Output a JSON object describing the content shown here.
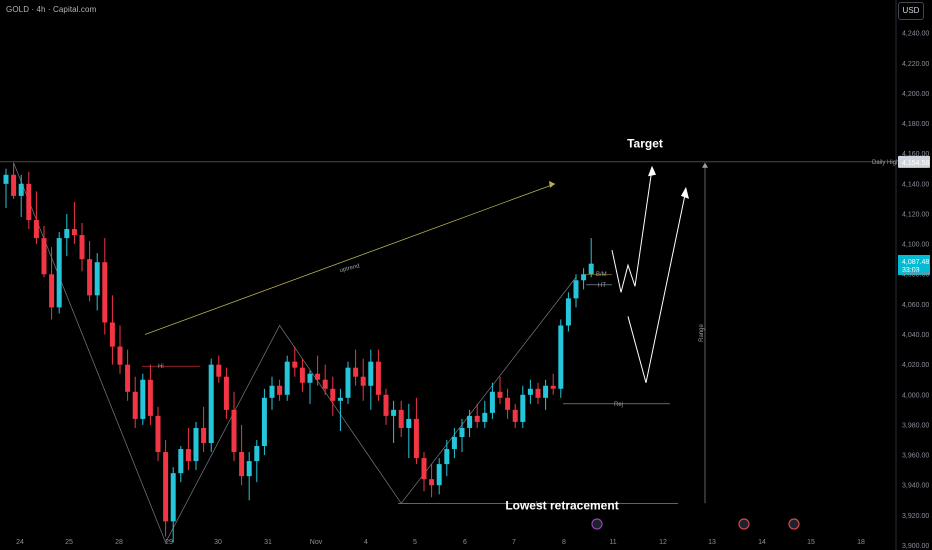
{
  "header": {
    "symbol": "GOLD · 4h · Capital.com",
    "currency": "USD"
  },
  "colors": {
    "up": "#26c6da",
    "down": "#f23645",
    "line": "#787b86",
    "trend": "#b5ad5a",
    "price_badge": "#00bcd4"
  },
  "chart_data": {
    "type": "candlestick",
    "y_ticks": [
      3900,
      3920,
      3940,
      3960,
      3980,
      4000,
      4020,
      4040,
      4060,
      4080,
      4100,
      4120,
      4140,
      4160,
      4180,
      4200,
      4220,
      4240
    ],
    "y_tick_labels": [
      "3,900.00",
      "3,920.00",
      "3,940.00",
      "3,960.00",
      "3,980.00",
      "4,000.00",
      "4,020.00",
      "4,040.00",
      "4,060.00",
      "4,080.00",
      "4,100.00",
      "4,120.00",
      "4,140.00",
      "4,160.00",
      "4,180.00",
      "4,200.00",
      "4,220.00",
      "4,240.00"
    ],
    "x_ticks": [
      "24",
      "25",
      "28",
      "29",
      "30",
      "31",
      "Nov",
      "4",
      "5",
      "6",
      "7",
      "8",
      "11",
      "12",
      "13",
      "14",
      "15",
      "18"
    ],
    "ylim": [
      3897,
      4262
    ],
    "candles": [
      [
        4140,
        4150,
        4124,
        4146
      ],
      [
        4146,
        4154,
        4130,
        4132
      ],
      [
        4132,
        4146,
        4118,
        4140
      ],
      [
        4140,
        4148,
        4110,
        4116
      ],
      [
        4116,
        4135,
        4100,
        4104
      ],
      [
        4104,
        4112,
        4078,
        4080
      ],
      [
        4080,
        4098,
        4050,
        4058
      ],
      [
        4058,
        4108,
        4054,
        4104
      ],
      [
        4104,
        4120,
        4092,
        4110
      ],
      [
        4110,
        4128,
        4100,
        4106
      ],
      [
        4106,
        4114,
        4082,
        4090
      ],
      [
        4090,
        4102,
        4062,
        4066
      ],
      [
        4066,
        4094,
        4056,
        4088
      ],
      [
        4088,
        4104,
        4040,
        4048
      ],
      [
        4048,
        4066,
        4020,
        4032
      ],
      [
        4032,
        4046,
        4014,
        4020
      ],
      [
        4020,
        4030,
        3996,
        4002
      ],
      [
        4002,
        4012,
        3978,
        3984
      ],
      [
        3984,
        4014,
        3980,
        4010
      ],
      [
        4010,
        4020,
        3980,
        3986
      ],
      [
        3986,
        3992,
        3956,
        3962
      ],
      [
        3962,
        3970,
        3906,
        3916
      ],
      [
        3916,
        3952,
        3902,
        3948
      ],
      [
        3948,
        3966,
        3942,
        3964
      ],
      [
        3964,
        3978,
        3950,
        3956
      ],
      [
        3956,
        3982,
        3950,
        3978
      ],
      [
        3978,
        3992,
        3962,
        3968
      ],
      [
        3968,
        4024,
        3962,
        4020
      ],
      [
        4020,
        4026,
        4008,
        4012
      ],
      [
        4012,
        4018,
        3984,
        3990
      ],
      [
        3990,
        4002,
        3956,
        3962
      ],
      [
        3962,
        3980,
        3940,
        3946
      ],
      [
        3946,
        3962,
        3930,
        3956
      ],
      [
        3956,
        3970,
        3942,
        3966
      ],
      [
        3966,
        4004,
        3960,
        3998
      ],
      [
        3998,
        4012,
        3990,
        4006
      ],
      [
        4006,
        4010,
        3996,
        4000
      ],
      [
        4000,
        4026,
        3996,
        4022
      ],
      [
        4022,
        4032,
        4012,
        4018
      ],
      [
        4018,
        4024,
        4002,
        4008
      ],
      [
        4008,
        4016,
        3994,
        4014
      ],
      [
        4014,
        4026,
        4006,
        4010
      ],
      [
        4010,
        4020,
        4000,
        4004
      ],
      [
        4004,
        4012,
        3986,
        3996
      ],
      [
        3996,
        4004,
        3976,
        3998
      ],
      [
        3998,
        4022,
        3994,
        4018
      ],
      [
        4018,
        4030,
        4006,
        4012
      ],
      [
        4012,
        4024,
        3996,
        4006
      ],
      [
        4006,
        4030,
        3990,
        4022
      ],
      [
        4022,
        4030,
        3996,
        4000
      ],
      [
        4000,
        4004,
        3980,
        3986
      ],
      [
        3986,
        3996,
        3968,
        3990
      ],
      [
        3990,
        3996,
        3972,
        3978
      ],
      [
        3978,
        3994,
        3958,
        3984
      ],
      [
        3984,
        3998,
        3954,
        3958
      ],
      [
        3958,
        3962,
        3936,
        3944
      ],
      [
        3944,
        3954,
        3932,
        3940
      ],
      [
        3940,
        3958,
        3934,
        3954
      ],
      [
        3954,
        3970,
        3946,
        3964
      ],
      [
        3964,
        3978,
        3958,
        3972
      ],
      [
        3972,
        3984,
        3962,
        3978
      ],
      [
        3978,
        3990,
        3972,
        3986
      ],
      [
        3986,
        3994,
        3978,
        3982
      ],
      [
        3982,
        3996,
        3978,
        3988
      ],
      [
        3988,
        4008,
        3984,
        4002
      ],
      [
        4002,
        4012,
        3994,
        3998
      ],
      [
        3998,
        4004,
        3984,
        3990
      ],
      [
        3990,
        3994,
        3978,
        3982
      ],
      [
        3982,
        4006,
        3978,
        4000
      ],
      [
        4000,
        4010,
        3994,
        4004
      ],
      [
        4004,
        4008,
        3994,
        3998
      ],
      [
        3998,
        4010,
        3990,
        4006
      ],
      [
        4006,
        4014,
        4000,
        4004
      ],
      [
        4004,
        4050,
        3998,
        4046
      ],
      [
        4046,
        4068,
        4042,
        4064
      ],
      [
        4064,
        4080,
        4058,
        4076
      ],
      [
        4076,
        4084,
        4070,
        4080
      ],
      [
        4080,
        4104,
        4078,
        4087
      ]
    ],
    "annotations": {
      "target": "Target",
      "lowest_retracement": "Lowest retracement",
      "uptrend": "uptrend",
      "daily_high_label": "Daily High",
      "daily_high_value": "4,154.58",
      "current_price": "4,087.48",
      "countdown": "33:03",
      "label_lo": "Lo",
      "label_hi": "Hi",
      "label_rej": "Rej",
      "label_bmid": "B/M",
      "label_ht": "HT",
      "label_range": "Range"
    },
    "levels": {
      "daily_high": 4154.58,
      "lo": 3928,
      "rej": 3994,
      "hi_box": 4012
    }
  }
}
